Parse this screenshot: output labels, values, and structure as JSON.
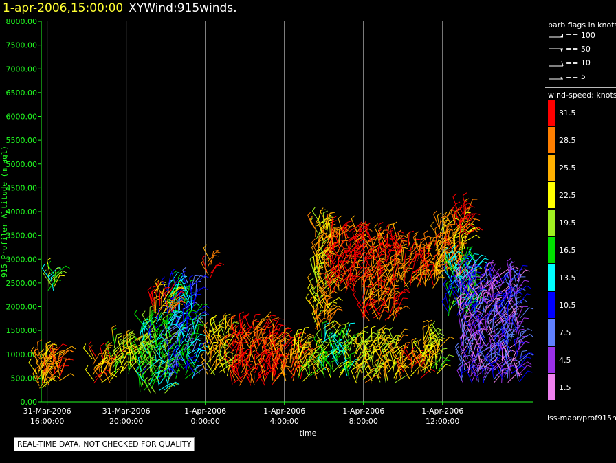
{
  "header": {
    "timestamp": "1-apr-2006,15:00:00",
    "product": "XYWind:915winds."
  },
  "chart_data": {
    "type": "scatter",
    "title": "",
    "xlabel": "time",
    "ylabel": "915 Profiler Altitude (m agl)",
    "ylim": [
      0,
      8000
    ],
    "yticks": [
      "0.00",
      "500.00",
      "1000.00",
      "1500.00",
      "2000.00",
      "2500.00",
      "3000.00",
      "3500.00",
      "4000.00",
      "4500.00",
      "5000.00",
      "5500.00",
      "6000.00",
      "6500.00",
      "7000.00",
      "7500.00",
      "8000.00"
    ],
    "xlim_hours": [
      -8.3,
      16.6
    ],
    "xticks": [
      {
        "hour": -8,
        "date": "31-Mar-2006",
        "time": "16:00:00"
      },
      {
        "hour": -4,
        "date": "31-Mar-2006",
        "time": "20:00:00"
      },
      {
        "hour": 0,
        "date": "1-Apr-2006",
        "time": "0:00:00"
      },
      {
        "hour": 4,
        "date": "1-Apr-2006",
        "time": "4:00:00"
      },
      {
        "hour": 8,
        "date": "1-Apr-2006",
        "time": "8:00:00"
      },
      {
        "hour": 12,
        "date": "1-Apr-2006",
        "time": "12:00:00"
      }
    ],
    "grid": "vertical",
    "series": [
      {
        "x": [
          -8.4,
          -8.2,
          -8.0
        ],
        "ymin": 300,
        "ymax": 1000,
        "speed": 27
      },
      {
        "x": [
          -7.6,
          -7.4
        ],
        "ymin": 450,
        "ymax": 1000,
        "speed": 29
      },
      {
        "x": [
          -7.9,
          -7.7
        ],
        "ymin": 2350,
        "ymax": 2700,
        "speed": 17
      },
      {
        "x": [
          -5.6,
          -5.2,
          -4.8
        ],
        "ymin": 400,
        "ymax": 1000,
        "speed": 27
      },
      {
        "x": [
          -4.6,
          -4.2,
          -3.8,
          -3.4
        ],
        "ymin": 600,
        "ymax": 1300,
        "speed": 21
      },
      {
        "x": [
          -3.2,
          -2.8,
          -2.4,
          -2.0
        ],
        "ymin": 200,
        "ymax": 1700,
        "speed": 16
      },
      {
        "x": [
          -1.8,
          -1.4,
          -1.0,
          -0.6
        ],
        "ymin": 500,
        "ymax": 2500,
        "speed": 12
      },
      {
        "x": [
          -2.6,
          -2.2,
          -1.8
        ],
        "ymin": 1800,
        "ymax": 2300,
        "speed": 28
      },
      {
        "x": [
          0.2
        ],
        "ymin": 2600,
        "ymax": 3000,
        "speed": 29
      },
      {
        "x": [
          0.2,
          0.6,
          1.0
        ],
        "ymin": 550,
        "ymax": 1550,
        "speed": 24
      },
      {
        "x": [
          1.4,
          1.8,
          2.2,
          2.6,
          3.0,
          3.4
        ],
        "ymin": 350,
        "ymax": 1600,
        "speed": 31
      },
      {
        "x": [
          3.6,
          4.0,
          4.4,
          4.8
        ],
        "ymin": 450,
        "ymax": 1300,
        "speed": 28
      },
      {
        "x": [
          4.8,
          5.2,
          5.6
        ],
        "ymin": 500,
        "ymax": 1100,
        "speed": 22
      },
      {
        "x": [
          5.6,
          5.9,
          6.2
        ],
        "ymin": 1500,
        "ymax": 3800,
        "speed": 25
      },
      {
        "x": [
          6.0,
          6.4,
          6.8,
          7.2
        ],
        "ymin": 500,
        "ymax": 1400,
        "speed": 18
      },
      {
        "x": [
          6.4,
          6.8,
          7.2,
          7.6
        ],
        "ymin": 2300,
        "ymax": 3600,
        "speed": 31
      },
      {
        "x": [
          7.6,
          8.0,
          8.4,
          8.8,
          9.2,
          9.6
        ],
        "ymin": 400,
        "ymax": 1300,
        "speed": 23
      },
      {
        "x": [
          8.0,
          8.4,
          8.8,
          9.2,
          9.6
        ],
        "ymin": 1700,
        "ymax": 3500,
        "speed": 30
      },
      {
        "x": [
          10.0,
          10.4,
          10.8
        ],
        "ymin": 500,
        "ymax": 1000,
        "speed": 27
      },
      {
        "x": [
          10.0,
          10.4,
          10.8,
          11.2,
          11.6
        ],
        "ymin": 2400,
        "ymax": 3300,
        "speed": 29
      },
      {
        "x": [
          11.0,
          11.4,
          11.8
        ],
        "ymin": 600,
        "ymax": 1400,
        "speed": 22
      },
      {
        "x": [
          11.8,
          12.2,
          12.6,
          13.0
        ],
        "ymin": 2600,
        "ymax": 3800,
        "speed": 26
      },
      {
        "x": [
          12.4,
          12.8,
          13.2,
          13.6
        ],
        "ymin": 1800,
        "ymax": 3000,
        "speed": 14
      },
      {
        "x": [
          13.0,
          13.4,
          13.8,
          14.2,
          14.6,
          15.0,
          15.4,
          15.8
        ],
        "ymin": 400,
        "ymax": 2700,
        "speed": 6
      },
      {
        "x": [
          12.8,
          13.2
        ],
        "ymin": 3500,
        "ymax": 4100,
        "speed": 31
      }
    ]
  },
  "legend": {
    "barb_title": "barb flags in knots",
    "barbs": [
      "== 100",
      "== 50",
      "== 10",
      "== 5"
    ],
    "speed_title": "wind-speed: knots",
    "scale": [
      {
        "label": "31.5",
        "color": "#ff0000"
      },
      {
        "label": "28.5",
        "color": "#ff7f00"
      },
      {
        "label": "25.5",
        "color": "#ffb000"
      },
      {
        "label": "22.5",
        "color": "#ffff00"
      },
      {
        "label": "19.5",
        "color": "#a0f020"
      },
      {
        "label": "16.5",
        "color": "#00e000"
      },
      {
        "label": "13.5",
        "color": "#00ffff"
      },
      {
        "label": "10.5",
        "color": "#0000ff"
      },
      {
        "label": "7.5",
        "color": "#6080ff"
      },
      {
        "label": "4.5",
        "color": "#9a30e8"
      },
      {
        "label": "1.5",
        "color": "#ee80ee"
      }
    ],
    "source": "iss-mapr/prof915h"
  },
  "notice": "REAL-TIME DATA, NOT CHECKED FOR QUALITY",
  "colors": {
    "axis": "#22ff22",
    "grid": "#999999",
    "ticklabel": "#ffffff"
  }
}
